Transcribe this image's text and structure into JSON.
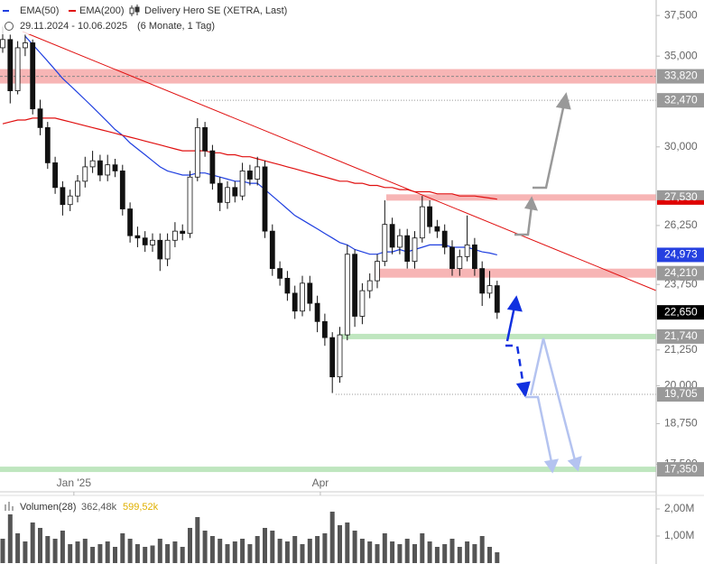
{
  "chart_data": {
    "type": "candlestick",
    "title": "Delivery Hero SE (XETRA, Last)",
    "subtitle": "29.11.2024 - 10.06.2025",
    "period": "(6 Monate, 1 Tag)",
    "log_scale": true,
    "ylim": [
      16700,
      38500
    ],
    "yticks": [
      {
        "value": 37500,
        "label": "37,500"
      },
      {
        "value": 35000,
        "label": "35,000"
      },
      {
        "value": 30000,
        "label": "30,000"
      },
      {
        "value": 26250,
        "label": "26,250"
      },
      {
        "value": 23750,
        "label": "23,750"
      },
      {
        "value": 21250,
        "label": "21,250"
      },
      {
        "value": 20000,
        "label": "20,000"
      },
      {
        "value": 18750,
        "label": "18,750"
      },
      {
        "value": 17500,
        "label": "17,500"
      }
    ],
    "xticks": [
      {
        "value": 9.5,
        "label": "Jan '25"
      },
      {
        "value": 42.4,
        "label": "Apr"
      }
    ],
    "up_color": "#ffffff",
    "down_color": "#111111",
    "ohlc": [
      [
        35500,
        36800,
        35200,
        36000
      ],
      [
        36000,
        36300,
        32300,
        33000
      ],
      [
        33000,
        35900,
        32800,
        35500
      ],
      [
        35500,
        36300,
        35000,
        35800
      ],
      [
        35800,
        36000,
        31700,
        32000
      ],
      [
        32000,
        32500,
        30600,
        31000
      ],
      [
        31000,
        31300,
        28900,
        29200
      ],
      [
        29200,
        29500,
        27700,
        28000
      ],
      [
        28000,
        28300,
        26700,
        27200
      ],
      [
        27200,
        27900,
        26900,
        27600
      ],
      [
        27600,
        28600,
        27300,
        28300
      ],
      [
        28300,
        29500,
        28000,
        29000
      ],
      [
        29000,
        29800,
        28700,
        29300
      ],
      [
        29300,
        29600,
        28300,
        28600
      ],
      [
        28600,
        29600,
        28300,
        29100
      ],
      [
        29100,
        29400,
        28500,
        28800
      ],
      [
        28800,
        29100,
        26700,
        27000
      ],
      [
        27000,
        27300,
        25500,
        25800
      ],
      [
        25800,
        26200,
        25300,
        25700
      ],
      [
        25700,
        26000,
        25100,
        25400
      ],
      [
        25400,
        25900,
        25100,
        25600
      ],
      [
        25600,
        25900,
        24300,
        24800
      ],
      [
        24800,
        25900,
        24500,
        25600
      ],
      [
        25600,
        26400,
        25300,
        26000
      ],
      [
        26000,
        26300,
        25600,
        25900
      ],
      [
        25900,
        28800,
        25700,
        28500
      ],
      [
        28500,
        31500,
        28300,
        31000
      ],
      [
        31000,
        31300,
        29500,
        29800
      ],
      [
        29800,
        30100,
        27900,
        28200
      ],
      [
        28200,
        28500,
        26900,
        27300
      ],
      [
        27300,
        28300,
        27000,
        28000
      ],
      [
        28000,
        28300,
        27300,
        27600
      ],
      [
        27600,
        29200,
        27400,
        28800
      ],
      [
        28800,
        29100,
        28100,
        28400
      ],
      [
        28400,
        29500,
        28100,
        29000
      ],
      [
        29000,
        29300,
        25700,
        26000
      ],
      [
        26000,
        26300,
        24100,
        24400
      ],
      [
        24400,
        24700,
        23700,
        24000
      ],
      [
        24000,
        24300,
        23100,
        23400
      ],
      [
        23400,
        23700,
        22400,
        22700
      ],
      [
        22700,
        24100,
        22500,
        23800
      ],
      [
        23800,
        24100,
        22700,
        23000
      ],
      [
        23000,
        23300,
        21900,
        22300
      ],
      [
        22300,
        22600,
        21400,
        21700
      ],
      [
        21700,
        21900,
        19750,
        20300
      ],
      [
        20300,
        22100,
        20100,
        21800
      ],
      [
        21800,
        25400,
        21600,
        25000
      ],
      [
        25000,
        25200,
        22100,
        22500
      ],
      [
        22500,
        23800,
        22200,
        23500
      ],
      [
        23500,
        24200,
        23200,
        23900
      ],
      [
        23900,
        25000,
        23600,
        24700
      ],
      [
        24700,
        27400,
        24500,
        26300
      ],
      [
        26300,
        26600,
        25000,
        25300
      ],
      [
        25300,
        26100,
        25000,
        25800
      ],
      [
        25800,
        26100,
        24400,
        24700
      ],
      [
        24700,
        26000,
        24400,
        25700
      ],
      [
        25700,
        27600,
        25500,
        27100
      ],
      [
        27100,
        27400,
        25900,
        26200
      ],
      [
        26200,
        26500,
        25700,
        26000
      ],
      [
        26000,
        26300,
        25000,
        25300
      ],
      [
        25300,
        25600,
        24100,
        24400
      ],
      [
        24400,
        25200,
        24100,
        24900
      ],
      [
        24900,
        26700,
        24700,
        25400
      ],
      [
        25400,
        25700,
        24100,
        24400
      ],
      [
        24400,
        24700,
        22900,
        23400
      ],
      [
        23400,
        24300,
        23200,
        23700
      ],
      [
        23700,
        23900,
        22400,
        22650
      ]
    ],
    "series": [
      {
        "name": "EMA(50)",
        "color": "#1f3fe0",
        "values": [
          null,
          null,
          null,
          36200,
          35700,
          35200,
          34700,
          34200,
          33700,
          33300,
          32900,
          32500,
          32100,
          31700,
          31300,
          30900,
          30600,
          30200,
          29900,
          29600,
          29300,
          29000,
          28800,
          28700,
          28600,
          28600,
          28700,
          28700,
          28600,
          28500,
          28400,
          28300,
          28300,
          28200,
          28200,
          27900,
          27600,
          27300,
          27000,
          26700,
          26500,
          26300,
          26100,
          25900,
          25700,
          25500,
          25400,
          25200,
          25100,
          25000,
          25000,
          25100,
          25100,
          25200,
          25100,
          25200,
          25300,
          25400,
          25400,
          25400,
          25300,
          25300,
          25300,
          25200,
          25100,
          25050,
          24973
        ]
      },
      {
        "name": "EMA(200)",
        "color": "#e01010",
        "values": [
          31200,
          31300,
          31400,
          31400,
          31500,
          31500,
          31500,
          31500,
          31400,
          31300,
          31200,
          31100,
          31000,
          30900,
          30800,
          30700,
          30600,
          30500,
          30400,
          30300,
          30200,
          30100,
          30000,
          29900,
          29800,
          29800,
          29800,
          29800,
          29700,
          29700,
          29600,
          29600,
          29500,
          29500,
          29400,
          29300,
          29200,
          29100,
          29000,
          28900,
          28800,
          28700,
          28600,
          28500,
          28400,
          28300,
          28300,
          28200,
          28200,
          28100,
          28100,
          28000,
          28000,
          27900,
          27900,
          27800,
          27800,
          27800,
          27700,
          27700,
          27700,
          27600,
          27600,
          27600,
          27550,
          27500,
          27450
        ]
      }
    ],
    "levels": [
      {
        "value": 33820,
        "label": "33,820",
        "color": "#999999",
        "band": "#f7b5b5"
      },
      {
        "value": 32470,
        "label": "32,470",
        "color": "#999999",
        "band": "dotted"
      },
      {
        "value": 27530,
        "label": "27,530",
        "color": "#999999",
        "accent": "#e00000",
        "band": "#f7b5b5"
      },
      {
        "value": 24973,
        "label": "24,973",
        "color": "#2540e0"
      },
      {
        "value": 24210,
        "label": "24,210",
        "color": "#999999",
        "band": "#f7b5b5"
      },
      {
        "value": 22650,
        "label": "22,650",
        "color": "#000000"
      },
      {
        "value": 21740,
        "label": "21,740",
        "color": "#999999",
        "band": "#bfe6bf"
      },
      {
        "value": 19705,
        "label": "19,705",
        "color": "#999999",
        "band": "dotted"
      },
      {
        "value": 17350,
        "label": "17,350",
        "color": "#999999",
        "band": "#bfe6bf"
      }
    ],
    "volume": {
      "name": "Volumen(28)",
      "legend_values": [
        "362,48k",
        "599,52k"
      ],
      "legend_colors": [
        "#555555",
        "#e0b000"
      ],
      "color": "#555555",
      "ylim": [
        0,
        2400000
      ],
      "yticks": [
        {
          "value": 1000000,
          "label": "1,00M"
        },
        {
          "value": 2000000,
          "label": "2,00M"
        }
      ],
      "values": [
        900000,
        1800000,
        1100000,
        800000,
        1500000,
        1300000,
        1000000,
        900000,
        1200000,
        700000,
        800000,
        900000,
        600000,
        700000,
        800000,
        600000,
        1100000,
        900000,
        700000,
        600000,
        650000,
        900000,
        700000,
        800000,
        600000,
        1300000,
        1700000,
        1200000,
        1000000,
        900000,
        700000,
        800000,
        900000,
        700000,
        1000000,
        1300000,
        1200000,
        900000,
        800000,
        1000000,
        700000,
        900000,
        1000000,
        1100000,
        1900000,
        1400000,
        1500000,
        1200000,
        900000,
        800000,
        700000,
        1100000,
        800000,
        700000,
        900000,
        700000,
        1100000,
        800000,
        600000,
        700000,
        900000,
        600000,
        800000,
        700000,
        1000000,
        600000,
        400000
      ]
    }
  }
}
